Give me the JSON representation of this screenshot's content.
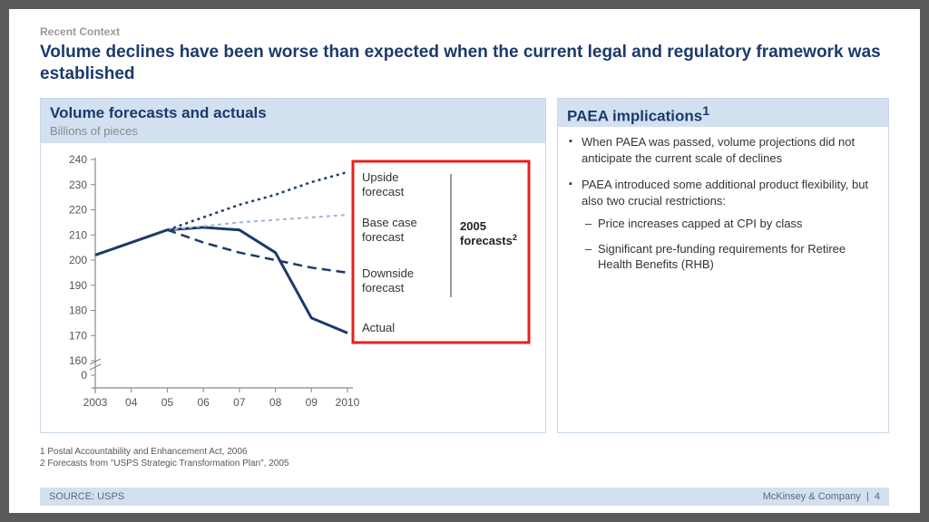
{
  "kicker": "Recent Context",
  "headline": "Volume declines have been worse than expected when the current legal and regulatory framework was established",
  "leftPanel": {
    "title": "Volume forecasts and actuals",
    "subtitle": "Billions of pieces"
  },
  "rightPanel": {
    "title": "PAEA implications",
    "title_sup": "1",
    "bullets": [
      "When PAEA was passed, volume projections did not anticipate the current scale of declines",
      "PAEA introduced some additional product flexibility, but also two crucial restrictions:"
    ],
    "subbullets": [
      "Price increases capped at CPI by class",
      "Significant pre-funding requirements for Retiree Health Benefits (RHB)"
    ]
  },
  "footnotes": [
    "1 Postal Accountability and Enhancement Act, 2006",
    "2 Forecasts from \"USPS Strategic Transformation Plan\", 2005"
  ],
  "sourceBar": {
    "source": "SOURCE: USPS",
    "brand": "McKinsey & Company",
    "page": "4"
  },
  "chart": {
    "type": "line",
    "x_labels": [
      "2003",
      "04",
      "05",
      "06",
      "07",
      "08",
      "09",
      "2010"
    ],
    "x_values": [
      2003,
      2004,
      2005,
      2006,
      2007,
      2008,
      2009,
      2010
    ],
    "y_ticks": [
      0,
      160,
      170,
      180,
      190,
      200,
      210,
      220,
      230,
      240
    ],
    "y_break_between": [
      0,
      160
    ],
    "series": [
      {
        "name": "Actual",
        "color": "#1b3a6b",
        "stroke_width": 3,
        "dash": "none",
        "points": [
          [
            2003,
            202
          ],
          [
            2004,
            207
          ],
          [
            2005,
            212
          ],
          [
            2006,
            213
          ],
          [
            2007,
            212
          ],
          [
            2008,
            203
          ],
          [
            2009,
            177
          ],
          [
            2010,
            171
          ]
        ]
      },
      {
        "name": "Upside forecast",
        "color": "#1b3a6b",
        "stroke_width": 2.5,
        "dash": "3 4",
        "square_dot": true,
        "points": [
          [
            2005,
            212
          ],
          [
            2006,
            217
          ],
          [
            2007,
            222
          ],
          [
            2008,
            226
          ],
          [
            2009,
            231
          ],
          [
            2010,
            235
          ]
        ]
      },
      {
        "name": "Base case forecast",
        "color": "#9eb5d3",
        "stroke_width": 2,
        "dash": "4 4",
        "points": [
          [
            2005,
            212
          ],
          [
            2006,
            213.5
          ],
          [
            2007,
            215
          ],
          [
            2008,
            216
          ],
          [
            2009,
            217
          ],
          [
            2010,
            218
          ]
        ]
      },
      {
        "name": "Downside forecast",
        "color": "#1b3a6b",
        "stroke_width": 2.5,
        "dash": "10 6",
        "points": [
          [
            2005,
            212
          ],
          [
            2006,
            207
          ],
          [
            2007,
            203
          ],
          [
            2008,
            200
          ],
          [
            2009,
            197
          ],
          [
            2010,
            195
          ]
        ]
      }
    ],
    "legend_labels": {
      "upside": "Upside forecast",
      "base": "Base case forecast",
      "downside": "Downside forecast",
      "actual": "Actual",
      "group": "2005 forecasts",
      "group_sup": "2"
    },
    "axis_color": "#888888",
    "tick_color": "#555555",
    "tick_fontsize": 12,
    "callout_box_color": "#e52020",
    "callout_box_stroke": 3,
    "background_color": "#ffffff"
  }
}
